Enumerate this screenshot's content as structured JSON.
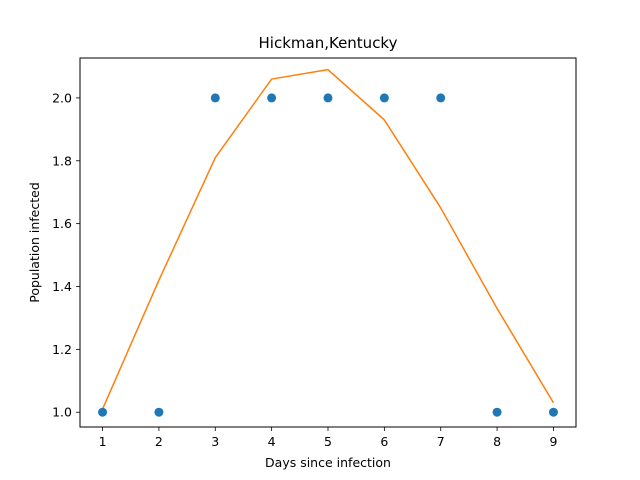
{
  "chart_data": {
    "type": "scatter",
    "title": "Hickman,Kentucky",
    "xlabel": "Days since infection",
    "ylabel": "Population infected",
    "xlim": [
      0.6,
      9.4
    ],
    "ylim": [
      0.953,
      2.127
    ],
    "xticks": [
      1,
      2,
      3,
      4,
      5,
      6,
      7,
      8,
      9
    ],
    "xtick_labels": [
      "1",
      "2",
      "3",
      "4",
      "5",
      "6",
      "7",
      "8",
      "9"
    ],
    "yticks": [
      1.0,
      1.2,
      1.4,
      1.6,
      1.8,
      2.0
    ],
    "ytick_labels": [
      "1.0",
      "1.2",
      "1.4",
      "1.6",
      "1.8",
      "2.0"
    ],
    "grid": false,
    "series": [
      {
        "kind": "scatter",
        "color": "#1f77b4",
        "x": [
          1,
          2,
          3,
          4,
          5,
          6,
          7,
          8,
          9
        ],
        "y": [
          1,
          1,
          2,
          2,
          2,
          2,
          2,
          1,
          1
        ]
      },
      {
        "kind": "line",
        "color": "#ff7f0e",
        "x": [
          1,
          2,
          3,
          4,
          5,
          6,
          7,
          8,
          9
        ],
        "y": [
          1.01,
          1.42,
          1.81,
          2.06,
          2.09,
          1.93,
          1.65,
          1.33,
          1.03
        ]
      }
    ]
  }
}
